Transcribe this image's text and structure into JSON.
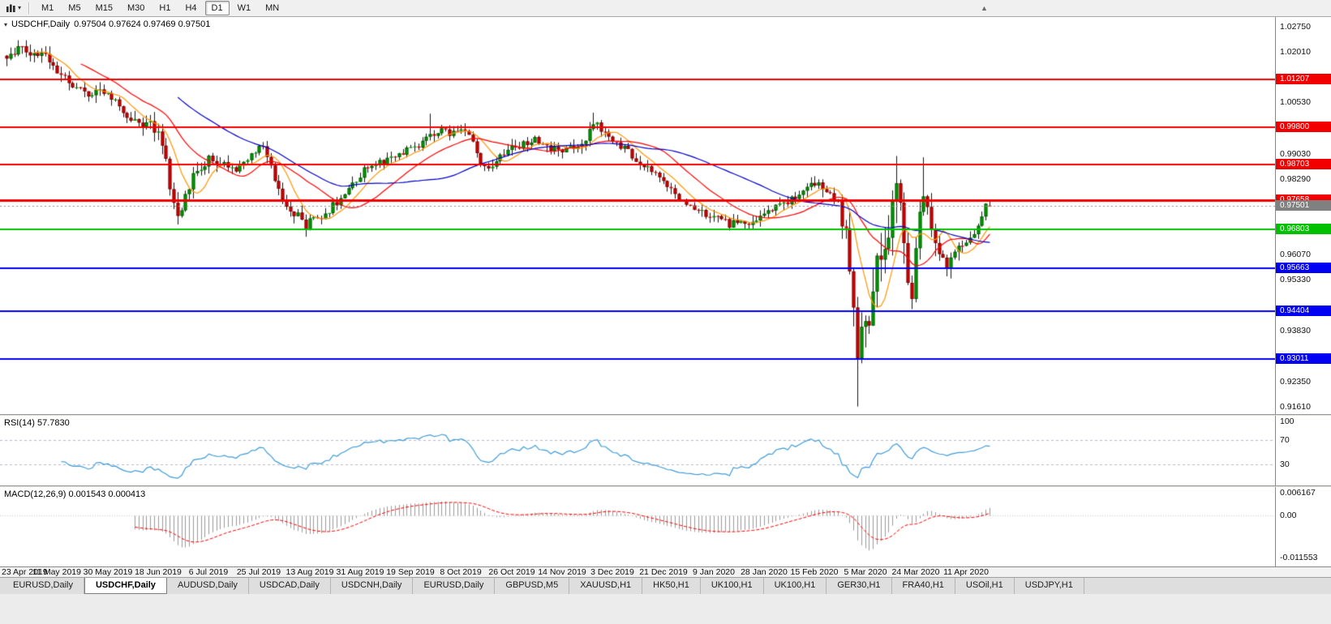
{
  "toolbar": {
    "timeframes": [
      "M1",
      "M5",
      "M15",
      "M30",
      "H1",
      "H4",
      "D1",
      "W1",
      "MN"
    ],
    "active_timeframe": "D1"
  },
  "chart": {
    "title": "USDCHF,Daily",
    "ohlc_line": "0.97504 0.97624 0.97469 0.97501"
  },
  "rsi_panel": {
    "label": "RSI(14) 57.7830"
  },
  "macd_panel": {
    "label": "MACD(12,26,9) 0.001543 0.000413"
  },
  "tabs": {
    "active_index": 1,
    "items": [
      "EURUSD,Daily",
      "USDCHF,Daily",
      "AUDUSD,Daily",
      "USDCAD,Daily",
      "USDCNH,Daily",
      "EURUSD,Daily",
      "GBPUSD,M5",
      "XAUUSD,H1",
      "HK50,H1",
      "UK100,H1",
      "UK100,H1",
      "GER30,H1",
      "FRA40,H1",
      "USOil,H1",
      "USDJPY,H1"
    ],
    "note": ""
  },
  "chart_data": {
    "type": "candlestick",
    "symbol": "USDCHF",
    "period": "Daily",
    "last_candle": {
      "open": 0.97504,
      "high": 0.97624,
      "low": 0.97469,
      "close": 0.97501
    },
    "current_price": {
      "price": 0.97501,
      "label": "0.97501",
      "box_color": "#808080"
    },
    "bull_color": "#00A000",
    "bear_color": "#DD0000",
    "wick_color": "#151515",
    "y_axis_ticks": [
      {
        "price": 1.0275,
        "label": "1.02750"
      },
      {
        "price": 1.0201,
        "label": "1.02010"
      },
      {
        "price": 1.0053,
        "label": "1.00530"
      },
      {
        "price": 0.9903,
        "label": "0.99030"
      },
      {
        "price": 0.9829,
        "label": "0.98290"
      },
      {
        "price": 0.9607,
        "label": "0.96070"
      },
      {
        "price": 0.9533,
        "label": "0.95330"
      },
      {
        "price": 0.9383,
        "label": "0.93830"
      },
      {
        "price": 0.9235,
        "label": "0.92350"
      },
      {
        "price": 0.9161,
        "label": "0.91610"
      }
    ],
    "levels": [
      {
        "price": 1.01207,
        "label": "1.01207",
        "color": "#F20000",
        "line_width": 2
      },
      {
        "price": 0.998,
        "label": "0.99800",
        "color": "#F20000",
        "line_width": 2
      },
      {
        "price": 0.98703,
        "label": "0.98703",
        "color": "#F20000",
        "line_width": 2
      },
      {
        "price": 0.97658,
        "label": "0.97658",
        "color": "#F20000",
        "line_width": 3
      },
      {
        "price": 0.96803,
        "label": "0.96803",
        "color": "#00C000",
        "line_width": 2
      },
      {
        "price": 0.95663,
        "label": "0.95663",
        "color": "#0000F2",
        "line_width": 2
      },
      {
        "price": 0.94404,
        "label": "0.94404",
        "color": "#0000F2",
        "line_width": 2
      },
      {
        "price": 0.93011,
        "label": "0.93011",
        "color": "#0000F2",
        "line_width": 2
      }
    ],
    "moving_averages": [
      {
        "period": 8,
        "color": "#FF9500"
      },
      {
        "period": 20,
        "color": "#FF0000"
      },
      {
        "period": 45,
        "color": "#0000C8"
      }
    ],
    "rsi": {
      "period": 14,
      "current": 57.783,
      "axis_labels": [
        100,
        70,
        30
      ],
      "guide_levels": [
        70,
        30
      ],
      "color": "#3E9CD8"
    },
    "macd": {
      "fast": 12,
      "slow": 26,
      "signal": 9,
      "current_macd": 0.001543,
      "current_signal": 0.000413,
      "hist_color": "#9a9a9a",
      "signal_color": "#FF0000",
      "axis_labels": [
        {
          "value": 0.006167,
          "label": "0.006167"
        },
        {
          "value": 0,
          "label": "0.00"
        },
        {
          "value": -0.011553,
          "label": "-0.011553"
        }
      ]
    },
    "x_labels": [
      "23 Apr 2019",
      "11 May 2019",
      "30 May 2019",
      "18 Jun 2019",
      "6 Jul 2019",
      "25 Jul 2019",
      "13 Aug 2019",
      "31 Aug 2019",
      "19 Sep 2019",
      "8 Oct 2019",
      "26 Oct 2019",
      "14 Nov 2019",
      "3 Dec 2019",
      "21 Dec 2019",
      "9 Jan 2020",
      "28 Jan 2020",
      "15 Feb 2020",
      "5 Mar 2020",
      "24 Mar 2020",
      "11 Apr 2020"
    ],
    "candle_count": 254,
    "candles_per_label": 13,
    "price_path_anchors": [
      [
        0,
        1.019
      ],
      [
        3,
        1.0215
      ],
      [
        6,
        1.0185
      ],
      [
        9,
        1.02
      ],
      [
        13,
        1.0148
      ],
      [
        17,
        1.0108
      ],
      [
        21,
        1.0078
      ],
      [
        24,
        1.0095
      ],
      [
        28,
        1.006
      ],
      [
        31,
        1.0005
      ],
      [
        34,
        0.999
      ],
      [
        36,
        1.0
      ],
      [
        39,
        0.9958
      ],
      [
        41,
        0.988
      ],
      [
        43,
        0.9745
      ],
      [
        44,
        0.9725
      ],
      [
        46,
        0.9768
      ],
      [
        48,
        0.983
      ],
      [
        52,
        0.989
      ],
      [
        55,
        0.9878
      ],
      [
        58,
        0.9858
      ],
      [
        61,
        0.9868
      ],
      [
        64,
        0.9915
      ],
      [
        66,
        0.993
      ],
      [
        68,
        0.9862
      ],
      [
        70,
        0.979
      ],
      [
        72,
        0.9745
      ],
      [
        75,
        0.9718
      ],
      [
        77,
        0.9692
      ],
      [
        79,
        0.9716
      ],
      [
        81,
        0.97
      ],
      [
        84,
        0.975
      ],
      [
        87,
        0.9786
      ],
      [
        90,
        0.9822
      ],
      [
        93,
        0.9868
      ],
      [
        97,
        0.988
      ],
      [
        100,
        0.9892
      ],
      [
        103,
        0.9916
      ],
      [
        106,
        0.9928
      ],
      [
        109,
        0.9958
      ],
      [
        112,
        0.9972
      ],
      [
        115,
        0.9962
      ],
      [
        118,
        0.9974
      ],
      [
        120,
        0.994
      ],
      [
        122,
        0.9884
      ],
      [
        124,
        0.9862
      ],
      [
        127,
        0.9892
      ],
      [
        130,
        0.9916
      ],
      [
        133,
        0.9928
      ],
      [
        136,
        0.994
      ],
      [
        139,
        0.9918
      ],
      [
        143,
        0.9906
      ],
      [
        146,
        0.9918
      ],
      [
        149,
        0.994
      ],
      [
        151,
        0.9996
      ],
      [
        153,
        0.9976
      ],
      [
        156,
        0.994
      ],
      [
        159,
        0.9918
      ],
      [
        162,
        0.9882
      ],
      [
        165,
        0.9858
      ],
      [
        168,
        0.9836
      ],
      [
        170,
        0.981
      ],
      [
        173,
        0.9776
      ],
      [
        176,
        0.9752
      ],
      [
        180,
        0.9722
      ],
      [
        183,
        0.9716
      ],
      [
        186,
        0.9694
      ],
      [
        189,
        0.9712
      ],
      [
        192,
        0.9698
      ],
      [
        195,
        0.9722
      ],
      [
        198,
        0.9746
      ],
      [
        201,
        0.9764
      ],
      [
        204,
        0.9788
      ],
      [
        207,
        0.9822
      ],
      [
        209,
        0.9812
      ],
      [
        212,
        0.9786
      ],
      [
        214,
        0.9752
      ],
      [
        216,
        0.966
      ],
      [
        218,
        0.948
      ],
      [
        219,
        0.93
      ],
      [
        220,
        0.9365
      ],
      [
        221,
        0.945
      ],
      [
        222,
        0.9392
      ],
      [
        223,
        0.953
      ],
      [
        225,
        0.9602
      ],
      [
        227,
        0.9692
      ],
      [
        228,
        0.9762
      ],
      [
        229,
        0.9822
      ],
      [
        230,
        0.977
      ],
      [
        231,
        0.9662
      ],
      [
        232,
        0.9552
      ],
      [
        233,
        0.9506
      ],
      [
        234,
        0.9602
      ],
      [
        235,
        0.9722
      ],
      [
        236,
        0.9782
      ],
      [
        237,
        0.9742
      ],
      [
        238,
        0.9682
      ],
      [
        240,
        0.9622
      ],
      [
        242,
        0.9582
      ],
      [
        244,
        0.9602
      ],
      [
        246,
        0.9642
      ],
      [
        248,
        0.9666
      ],
      [
        250,
        0.9682
      ],
      [
        252,
        0.9752
      ],
      [
        253,
        0.975
      ]
    ],
    "volatility_anchors": [
      [
        0,
        0.0045
      ],
      [
        20,
        0.004
      ],
      [
        40,
        0.0052
      ],
      [
        44,
        0.0058
      ],
      [
        60,
        0.0035
      ],
      [
        77,
        0.0042
      ],
      [
        100,
        0.003
      ],
      [
        120,
        0.0038
      ],
      [
        151,
        0.004
      ],
      [
        170,
        0.0032
      ],
      [
        186,
        0.0035
      ],
      [
        207,
        0.0036
      ],
      [
        214,
        0.0055
      ],
      [
        218,
        0.012
      ],
      [
        222,
        0.014
      ],
      [
        228,
        0.012
      ],
      [
        234,
        0.01
      ],
      [
        240,
        0.0065
      ],
      [
        246,
        0.0045
      ],
      [
        251,
        0.003
      ],
      [
        253,
        0.0018
      ]
    ],
    "forced_extremes": {
      "3": {
        "high": 1.0232
      },
      "44": {
        "low": 0.9695
      },
      "77": {
        "low": 0.9659
      },
      "109": {
        "high": 1.002
      },
      "151": {
        "high": 1.0023
      },
      "219": {
        "low": 0.9161
      },
      "229": {
        "high": 0.9896
      },
      "236": {
        "high": 0.9892
      }
    }
  }
}
